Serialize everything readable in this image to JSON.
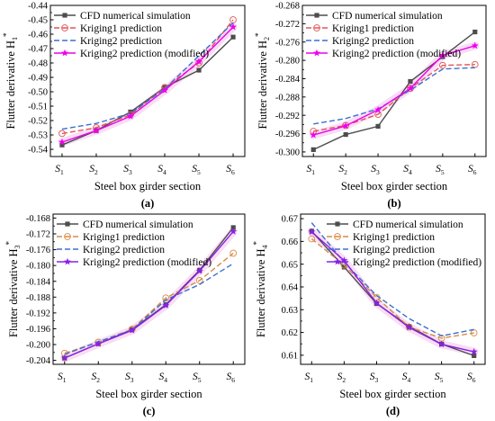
{
  "chart_data": [
    {
      "type": "line",
      "panel_label": "(a)",
      "xlabel": "Steel box girder section",
      "ylabel": "Flutter derivative H",
      "ylabel_sub": "1",
      "ylabel_sup": "*",
      "categories": [
        {
          "base": "S",
          "sub": "1"
        },
        {
          "base": "S",
          "sub": "2"
        },
        {
          "base": "S",
          "sub": "3"
        },
        {
          "base": "S",
          "sub": "4"
        },
        {
          "base": "S",
          "sub": "5"
        },
        {
          "base": "S",
          "sub": "6"
        }
      ],
      "ylim": [
        -0.545,
        -0.44
      ],
      "yticks": [
        "-0.54",
        "-0.53",
        "-0.52",
        "-0.51",
        "-0.50",
        "-0.49",
        "-0.48",
        "-0.47",
        "-0.46",
        "-0.45",
        "-0.44"
      ],
      "ytick_values": [
        -0.54,
        -0.53,
        -0.52,
        -0.51,
        -0.5,
        -0.49,
        -0.48,
        -0.47,
        -0.46,
        -0.45,
        -0.44
      ],
      "legend_position": "top-left",
      "series": [
        {
          "name": "CFD numerical simulation",
          "values": [
            -0.537,
            -0.527,
            -0.514,
            -0.497,
            -0.485,
            -0.462
          ],
          "color": "#4d4d4d",
          "dash": "",
          "marker": "square"
        },
        {
          "name": "Kriging1 prediction",
          "values": [
            -0.529,
            -0.525,
            -0.516,
            -0.497,
            -0.48,
            -0.45
          ],
          "color": "#e05555",
          "dash": "6,3",
          "marker": "circle-open"
        },
        {
          "name": "Kriging2 prediction",
          "values": [
            -0.526,
            -0.522,
            -0.515,
            -0.498,
            -0.475,
            -0.452
          ],
          "color": "#3a6fd0",
          "dash": "6,3",
          "marker": "none"
        },
        {
          "name": "Kriging2 prediction (modified)",
          "values": [
            -0.535,
            -0.527,
            -0.517,
            -0.499,
            -0.479,
            -0.455
          ],
          "color": "#ee00ee",
          "dash": "",
          "marker": "star"
        }
      ]
    },
    {
      "type": "line",
      "panel_label": "(b)",
      "xlabel": "Steel box girder section",
      "ylabel": "Flutter derivative H",
      "ylabel_sub": "2",
      "ylabel_sup": "*",
      "categories": [
        {
          "base": "S",
          "sub": "1"
        },
        {
          "base": "S",
          "sub": "2"
        },
        {
          "base": "S",
          "sub": "3"
        },
        {
          "base": "S",
          "sub": "4"
        },
        {
          "base": "S",
          "sub": "5"
        },
        {
          "base": "S",
          "sub": "6"
        }
      ],
      "ylim": [
        -0.301,
        -0.268
      ],
      "yticks": [
        "-0.300",
        "-0.296",
        "-0.292",
        "-0.288",
        "-0.284",
        "-0.280",
        "-0.276",
        "-0.272",
        "-0.268"
      ],
      "ytick_values": [
        -0.3,
        -0.296,
        -0.292,
        -0.288,
        -0.284,
        -0.28,
        -0.276,
        -0.272,
        -0.268
      ],
      "legend_position": "top-left",
      "series": [
        {
          "name": "CFD numerical simulation",
          "values": [
            -0.2995,
            -0.2962,
            -0.2944,
            -0.2846,
            -0.2792,
            -0.2738
          ],
          "color": "#4d4d4d",
          "dash": "",
          "marker": "square"
        },
        {
          "name": "Kriging1 prediction",
          "values": [
            -0.2955,
            -0.2942,
            -0.2918,
            -0.2861,
            -0.2811,
            -0.2809
          ],
          "color": "#e05555",
          "dash": "6,3",
          "marker": "circle-open"
        },
        {
          "name": "Kriging2 prediction",
          "values": [
            -0.2939,
            -0.2927,
            -0.2906,
            -0.2865,
            -0.2819,
            -0.2816
          ],
          "color": "#3a6fd0",
          "dash": "6,3",
          "marker": "none"
        },
        {
          "name": "Kriging2 prediction (modified)",
          "values": [
            -0.2963,
            -0.2943,
            -0.2908,
            -0.2861,
            -0.2789,
            -0.2768
          ],
          "color": "#ee00ee",
          "dash": "",
          "marker": "star"
        }
      ]
    },
    {
      "type": "line",
      "panel_label": "(c)",
      "xlabel": "Steel box girder section",
      "ylabel": "Flutter derivative H",
      "ylabel_sub": "3",
      "ylabel_sup": "*",
      "categories": [
        {
          "base": "S",
          "sub": "1"
        },
        {
          "base": "S",
          "sub": "2"
        },
        {
          "base": "S",
          "sub": "3"
        },
        {
          "base": "S",
          "sub": "4"
        },
        {
          "base": "S",
          "sub": "5"
        },
        {
          "base": "S",
          "sub": "6"
        }
      ],
      "ylim": [
        -0.205,
        -0.167
      ],
      "yticks": [
        "-0.204",
        "-0.200",
        "-0.196",
        "-0.192",
        "-0.188",
        "-0.184",
        "-0.180",
        "-0.176",
        "-0.172",
        "-0.168"
      ],
      "ytick_values": [
        -0.204,
        -0.2,
        -0.196,
        -0.192,
        -0.188,
        -0.184,
        -0.18,
        -0.176,
        -0.172,
        -0.168
      ],
      "legend_position": "top-left",
      "series": [
        {
          "name": "CFD numerical simulation",
          "values": [
            -0.2034,
            -0.1998,
            -0.1962,
            -0.1899,
            -0.1812,
            -0.1704
          ],
          "color": "#4d4d4d",
          "dash": "",
          "marker": "square"
        },
        {
          "name": "Kriging1 prediction",
          "values": [
            -0.2022,
            -0.1994,
            -0.1961,
            -0.1882,
            -0.1838,
            -0.1769
          ],
          "color": "#d88a45",
          "dash": "6,3",
          "marker": "circle-open"
        },
        {
          "name": "Kriging2 prediction",
          "values": [
            -0.2025,
            -0.1993,
            -0.1963,
            -0.1887,
            -0.1848,
            -0.1795
          ],
          "color": "#3a6fd0",
          "dash": "6,3",
          "marker": "none"
        },
        {
          "name": "Kriging2 prediction (modified)",
          "values": [
            -0.2034,
            -0.1998,
            -0.1964,
            -0.1901,
            -0.1814,
            -0.1714
          ],
          "color": "#8a20e6",
          "dash": "",
          "marker": "star"
        }
      ]
    },
    {
      "type": "line",
      "panel_label": "(d)",
      "xlabel": "Steel box girder section",
      "ylabel": "Flutter derivative H",
      "ylabel_sub": "4",
      "ylabel_sup": "*",
      "categories": [
        {
          "base": "S",
          "sub": "1"
        },
        {
          "base": "S",
          "sub": "2"
        },
        {
          "base": "S",
          "sub": "3"
        },
        {
          "base": "S",
          "sub": "4"
        },
        {
          "base": "S",
          "sub": "5"
        },
        {
          "base": "S",
          "sub": "6"
        }
      ],
      "ylim": [
        0.606,
        0.672
      ],
      "yticks": [
        "0.61",
        "0.62",
        "0.63",
        "0.64",
        "0.65",
        "0.66",
        "0.67"
      ],
      "ytick_values": [
        0.61,
        0.62,
        0.63,
        0.64,
        0.65,
        0.66,
        0.67
      ],
      "legend_position": "top-right",
      "series": [
        {
          "name": "CFD numerical simulation",
          "values": [
            0.6645,
            0.6487,
            0.6327,
            0.6227,
            0.6149,
            0.6098
          ],
          "color": "#4d4d4d",
          "dash": "",
          "marker": "square"
        },
        {
          "name": "Kriging1 prediction",
          "values": [
            0.6611,
            0.6496,
            0.6354,
            0.6224,
            0.6175,
            0.6198
          ],
          "color": "#d88a45",
          "dash": "6,3",
          "marker": "circle-open"
        },
        {
          "name": "Kriging2 prediction",
          "values": [
            0.6682,
            0.6508,
            0.6362,
            0.6261,
            0.6185,
            0.6213
          ],
          "color": "#3a6fd0",
          "dash": "6,3",
          "marker": "none"
        },
        {
          "name": "Kriging2 prediction (modified)",
          "values": [
            0.6642,
            0.6516,
            0.6329,
            0.6222,
            0.6148,
            0.6115
          ],
          "color": "#8a20e6",
          "dash": "",
          "marker": "star"
        }
      ]
    }
  ]
}
